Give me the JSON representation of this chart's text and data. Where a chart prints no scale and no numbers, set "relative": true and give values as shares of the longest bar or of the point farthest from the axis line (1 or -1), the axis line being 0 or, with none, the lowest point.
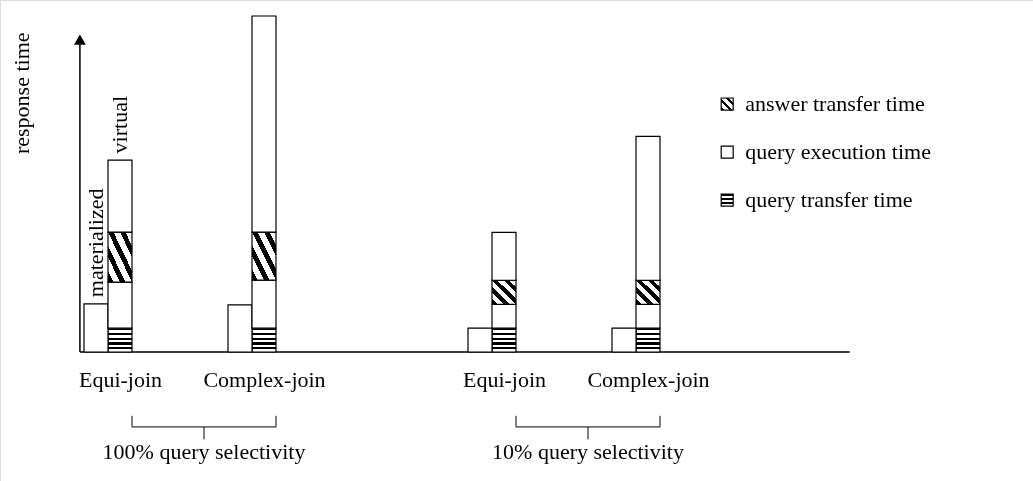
{
  "chart_data": {
    "type": "bar",
    "stacked": true,
    "relative": true,
    "ylabel": "response time",
    "legend": "top right",
    "categories": [
      null,
      "Equi-join",
      null,
      null,
      null,
      null,
      null,
      "Complex-join",
      null,
      null,
      null,
      null,
      null,
      null,
      null,
      null,
      null,
      "Equi-join",
      null,
      null,
      null,
      null,
      null,
      "Complex-join"
    ],
    "series": [
      {
        "name": "query transfer time",
        "color": "#000000",
        "values": [
          null,
          0.071,
          null,
          null,
          null,
          null,
          null,
          0.071,
          null,
          null,
          null,
          null,
          null,
          null,
          null,
          null,
          null,
          0.071,
          null,
          null,
          null,
          null,
          null,
          0.071
        ]
      },
      {
        "name": "query execution time",
        "color": "#ffffff",
        "values": [
          0.143,
          0.137,
          null,
          null,
          null,
          null,
          0.14,
          0.143,
          null,
          null,
          null,
          null,
          null,
          null,
          null,
          null,
          0.071,
          0.071,
          null,
          null,
          null,
          null,
          0.071,
          0.071
        ]
      },
      {
        "name": "answer transfer time",
        "color": "#000000",
        "values": [
          null,
          0.149,
          null,
          null,
          null,
          null,
          null,
          0.143,
          null,
          null,
          null,
          null,
          null,
          null,
          null,
          null,
          null,
          0.071,
          null,
          null,
          null,
          null,
          null,
          0.071
        ]
      },
      {
        "color": "#ffffff",
        "values": [
          null,
          0.214,
          null,
          null,
          null,
          null,
          null,
          0.643,
          null,
          null,
          null,
          null,
          null,
          null,
          null,
          null,
          null,
          0.143,
          null,
          null,
          null,
          null,
          null,
          0.429
        ]
      }
    ],
    "annotations": [
      "materialized",
      "virtual",
      "100% query selectivity",
      "10% query selectivity"
    ]
  }
}
